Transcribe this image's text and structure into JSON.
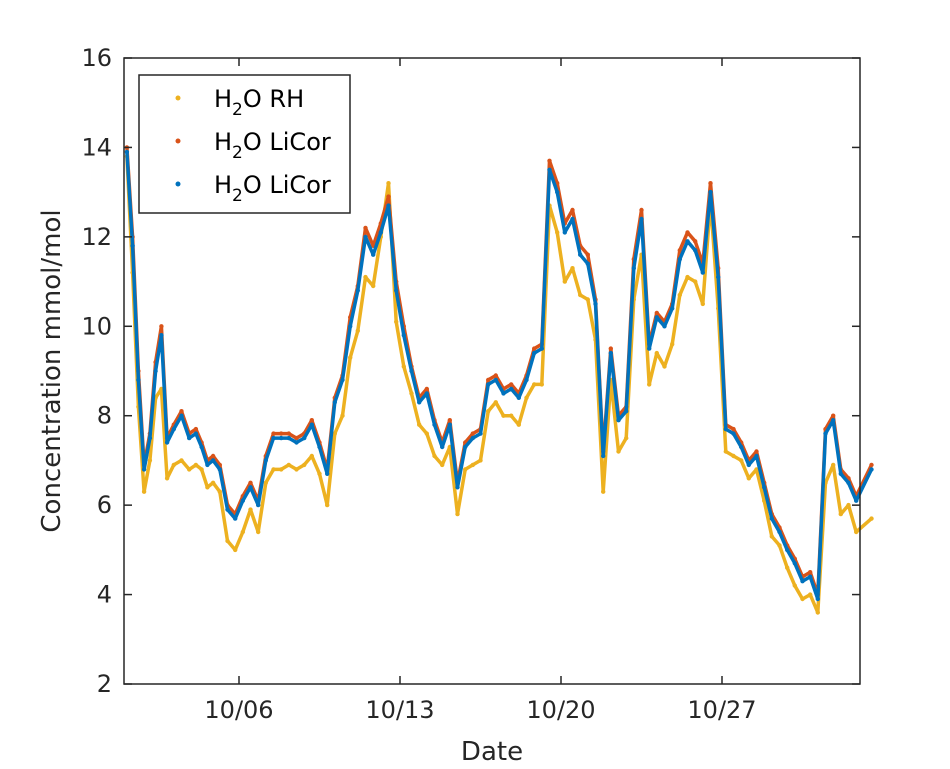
{
  "chart_data": {
    "type": "scatter",
    "title": "",
    "xlabel": "Date",
    "ylabel": "Concentration mmol/mol",
    "x_ticks": [
      {
        "date": "10/06",
        "label": "10/06"
      },
      {
        "date": "10/13",
        "label": "10/13"
      },
      {
        "date": "10/20",
        "label": "10/20"
      },
      {
        "date": "10/27",
        "label": "10/27"
      }
    ],
    "xlim": [
      "10/01",
      "11/02"
    ],
    "ylim": [
      2,
      16
    ],
    "y_ticks": [
      2,
      4,
      6,
      8,
      10,
      12,
      14,
      16
    ],
    "grid": false,
    "legend": {
      "position": "top-left",
      "entries": [
        {
          "label_main": "H",
          "label_sub": "2",
          "label_rest": "O RH",
          "color": "#EDB120"
        },
        {
          "label_main": "H",
          "label_sub": "2",
          "label_rest": "O LiCor",
          "color": "#D95319"
        },
        {
          "label_main": "H",
          "label_sub": "2",
          "label_rest": "O LiCor",
          "color": "#0072BD"
        }
      ]
    },
    "series": [
      {
        "color": "#EDB120",
        "x": [
          "10/01",
          "10/01",
          "10/01",
          "10/01",
          "10/02",
          "10/02",
          "10/02",
          "10/02",
          "10/03",
          "10/03",
          "10/03",
          "10/04",
          "10/04",
          "10/04",
          "10/04",
          "10/05",
          "10/05",
          "10/05",
          "10/06",
          "10/06",
          "10/06",
          "10/07",
          "10/07",
          "10/07",
          "10/08",
          "10/08",
          "10/08",
          "10/09",
          "10/09",
          "10/09",
          "10/10",
          "10/10",
          "10/10",
          "10/11",
          "10/11",
          "10/11",
          "10/12",
          "10/12",
          "10/12",
          "10/13",
          "10/13",
          "10/13",
          "10/14",
          "10/14",
          "10/14",
          "10/15",
          "10/15",
          "10/15",
          "10/16",
          "10/16",
          "10/16",
          "10/17",
          "10/17",
          "10/17",
          "10/18",
          "10/18",
          "10/18",
          "10/19",
          "10/19",
          "10/19",
          "10/20",
          "10/20",
          "10/20",
          "10/21",
          "10/21",
          "10/21",
          "10/22",
          "10/22",
          "10/22",
          "10/23",
          "10/23",
          "10/23",
          "10/24",
          "10/24",
          "10/24",
          "10/25",
          "10/25",
          "10/25",
          "10/26",
          "10/26",
          "10/26",
          "10/27",
          "10/27",
          "10/27",
          "10/28",
          "10/28",
          "10/28",
          "10/29",
          "10/29",
          "10/29",
          "10/30",
          "10/30",
          "10/30",
          "10/31",
          "10/31",
          "10/31",
          "11/01",
          "11/01",
          "11/01",
          "11/02"
        ],
        "y": [
          13.8,
          11.2,
          8.2,
          6.3,
          7.0,
          8.4,
          8.6,
          6.6,
          6.9,
          7.0,
          6.8,
          6.9,
          6.8,
          6.4,
          6.5,
          6.3,
          5.2,
          5.0,
          5.4,
          5.9,
          5.4,
          6.5,
          6.8,
          6.8,
          6.9,
          6.8,
          6.9,
          7.1,
          6.7,
          6.0,
          7.6,
          8.0,
          9.3,
          9.9,
          11.1,
          10.9,
          12.0,
          13.2,
          10.1,
          9.1,
          8.5,
          7.8,
          7.6,
          7.1,
          6.9,
          7.3,
          5.8,
          6.8,
          6.9,
          7.0,
          8.1,
          8.3,
          8.0,
          8.0,
          7.8,
          8.4,
          8.7,
          8.7,
          12.7,
          12.1,
          11.0,
          11.3,
          10.7,
          10.6,
          9.7,
          6.3,
          8.8,
          7.2,
          7.5,
          10.6,
          11.6,
          8.7,
          9.4,
          9.1,
          9.6,
          10.7,
          11.1,
          11.0,
          10.5,
          12.8,
          10.4,
          7.2,
          7.1,
          7.0,
          6.6,
          6.8,
          6.1,
          5.3,
          5.1,
          4.6,
          4.2,
          3.9,
          4.0,
          3.6,
          6.5,
          6.9,
          5.8,
          6.0,
          5.4,
          5.7
        ]
      },
      {
        "color": "#D95319",
        "x": [
          "10/01",
          "10/01",
          "10/01",
          "10/01",
          "10/02",
          "10/02",
          "10/02",
          "10/02",
          "10/03",
          "10/03",
          "10/03",
          "10/04",
          "10/04",
          "10/04",
          "10/04",
          "10/05",
          "10/05",
          "10/05",
          "10/06",
          "10/06",
          "10/06",
          "10/07",
          "10/07",
          "10/07",
          "10/08",
          "10/08",
          "10/08",
          "10/09",
          "10/09",
          "10/09",
          "10/10",
          "10/10",
          "10/10",
          "10/11",
          "10/11",
          "10/11",
          "10/12",
          "10/12",
          "10/12",
          "10/13",
          "10/13",
          "10/13",
          "10/14",
          "10/14",
          "10/14",
          "10/15",
          "10/15",
          "10/15",
          "10/16",
          "10/16",
          "10/16",
          "10/17",
          "10/17",
          "10/17",
          "10/18",
          "10/18",
          "10/18",
          "10/19",
          "10/19",
          "10/19",
          "10/20",
          "10/20",
          "10/20",
          "10/21",
          "10/21",
          "10/21",
          "10/22",
          "10/22",
          "10/22",
          "10/23",
          "10/23",
          "10/23",
          "10/24",
          "10/24",
          "10/24",
          "10/25",
          "10/25",
          "10/25",
          "10/26",
          "10/26",
          "10/26",
          "10/27",
          "10/27",
          "10/27",
          "10/28",
          "10/28",
          "10/28",
          "10/29",
          "10/29",
          "10/29",
          "10/30",
          "10/30",
          "10/30",
          "10/31",
          "10/31",
          "10/31",
          "11/01",
          "11/01",
          "11/01",
          "11/02"
        ],
        "y": [
          14.0,
          12.0,
          9.0,
          6.9,
          7.6,
          9.2,
          10.0,
          7.5,
          7.8,
          8.1,
          7.6,
          7.7,
          7.4,
          7.0,
          7.1,
          6.9,
          6.0,
          5.8,
          6.2,
          6.5,
          6.1,
          7.1,
          7.6,
          7.6,
          7.6,
          7.5,
          7.6,
          7.9,
          7.4,
          6.8,
          8.4,
          8.9,
          10.2,
          10.9,
          12.2,
          11.8,
          12.3,
          12.9,
          11.0,
          10.0,
          9.1,
          8.4,
          8.6,
          7.9,
          7.4,
          7.9,
          6.5,
          7.4,
          7.6,
          7.7,
          8.8,
          8.9,
          8.6,
          8.7,
          8.5,
          8.9,
          9.5,
          9.6,
          13.7,
          13.2,
          12.3,
          12.6,
          11.8,
          11.6,
          10.6,
          7.2,
          9.5,
          8.0,
          8.2,
          11.5,
          12.6,
          9.6,
          10.3,
          10.1,
          10.5,
          11.7,
          12.1,
          11.9,
          11.4,
          13.2,
          11.3,
          7.8,
          7.7,
          7.4,
          7.0,
          7.2,
          6.5,
          5.8,
          5.5,
          5.1,
          4.8,
          4.4,
          4.5,
          4.0,
          7.7,
          8.0,
          6.8,
          6.6,
          6.2,
          6.9
        ]
      },
      {
        "color": "#0072BD",
        "x": [
          "10/01",
          "10/01",
          "10/01",
          "10/01",
          "10/02",
          "10/02",
          "10/02",
          "10/02",
          "10/03",
          "10/03",
          "10/03",
          "10/04",
          "10/04",
          "10/04",
          "10/04",
          "10/05",
          "10/05",
          "10/05",
          "10/06",
          "10/06",
          "10/06",
          "10/07",
          "10/07",
          "10/07",
          "10/08",
          "10/08",
          "10/08",
          "10/09",
          "10/09",
          "10/09",
          "10/10",
          "10/10",
          "10/10",
          "10/11",
          "10/11",
          "10/11",
          "10/12",
          "10/12",
          "10/12",
          "10/13",
          "10/13",
          "10/13",
          "10/14",
          "10/14",
          "10/14",
          "10/15",
          "10/15",
          "10/15",
          "10/16",
          "10/16",
          "10/16",
          "10/17",
          "10/17",
          "10/17",
          "10/18",
          "10/18",
          "10/18",
          "10/19",
          "10/19",
          "10/19",
          "10/20",
          "10/20",
          "10/20",
          "10/21",
          "10/21",
          "10/21",
          "10/22",
          "10/22",
          "10/22",
          "10/23",
          "10/23",
          "10/23",
          "10/24",
          "10/24",
          "10/24",
          "10/25",
          "10/25",
          "10/25",
          "10/26",
          "10/26",
          "10/26",
          "10/27",
          "10/27",
          "10/27",
          "10/28",
          "10/28",
          "10/28",
          "10/29",
          "10/29",
          "10/29",
          "10/30",
          "10/30",
          "10/30",
          "10/31",
          "10/31",
          "10/31",
          "11/01",
          "11/01",
          "11/01",
          "11/02"
        ],
        "y": [
          13.9,
          11.8,
          8.8,
          6.8,
          7.5,
          9.0,
          9.8,
          7.4,
          7.7,
          8.0,
          7.5,
          7.6,
          7.3,
          6.9,
          7.0,
          6.8,
          5.9,
          5.7,
          6.1,
          6.4,
          6.0,
          7.0,
          7.5,
          7.5,
          7.5,
          7.4,
          7.5,
          7.8,
          7.3,
          6.7,
          8.3,
          8.8,
          10.0,
          10.8,
          12.0,
          11.6,
          12.1,
          12.7,
          10.8,
          9.8,
          9.0,
          8.3,
          8.5,
          7.8,
          7.3,
          7.8,
          6.4,
          7.3,
          7.5,
          7.6,
          8.7,
          8.8,
          8.5,
          8.6,
          8.4,
          8.8,
          9.4,
          9.5,
          13.5,
          13.0,
          12.1,
          12.4,
          11.6,
          11.4,
          10.5,
          7.1,
          9.4,
          7.9,
          8.1,
          11.3,
          12.4,
          9.5,
          10.2,
          10.0,
          10.4,
          11.5,
          11.9,
          11.7,
          11.2,
          13.0,
          11.1,
          7.7,
          7.6,
          7.3,
          6.9,
          7.1,
          6.4,
          5.7,
          5.4,
          5.0,
          4.7,
          4.3,
          4.4,
          3.9,
          7.6,
          7.9,
          6.7,
          6.5,
          6.1,
          6.8
        ]
      }
    ]
  }
}
